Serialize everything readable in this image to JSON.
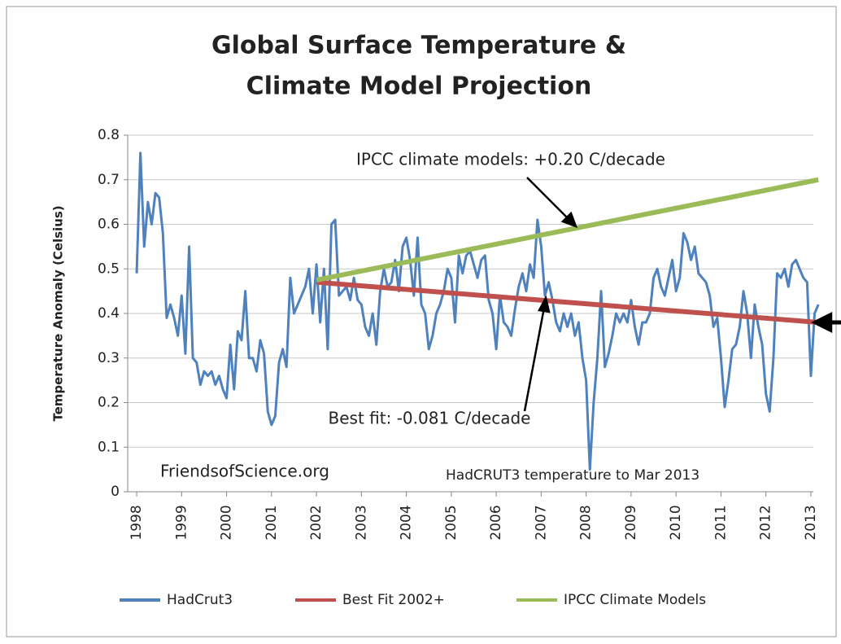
{
  "chart_data": {
    "type": "line",
    "title": [
      "Global Surface Temperature &",
      "Climate Model Projection"
    ],
    "ylabel": "Temperature Anomaly (Celsius)",
    "annotations": [
      "IPCC climate models: +0.20 C/decade",
      "Best fit: -0.081 C/decade",
      "FriendsofScience.org",
      "HadCRUT3 temperature to Mar 2013"
    ],
    "xlim": [
      1997.8,
      2013.2
    ],
    "xticks": [
      1998,
      1999,
      2000,
      2001,
      2002,
      2003,
      2004,
      2005,
      2006,
      2007,
      2008,
      2009,
      2010,
      2011,
      2012,
      2013
    ],
    "ylim": [
      0,
      0.8
    ],
    "yticks": [
      0,
      0.1,
      0.2,
      0.3,
      0.4,
      0.5,
      0.6,
      0.7,
      0.8
    ],
    "grid": true,
    "legend": "bottom",
    "series": [
      {
        "name": "HadCrut3",
        "color": "#4f81bd",
        "x": [
          1998,
          1998.083,
          1998.167,
          1998.25,
          1998.333,
          1998.417,
          1998.5,
          1998.583,
          1998.667,
          1998.75,
          1998.833,
          1998.917,
          1999,
          1999.083,
          1999.167,
          1999.25,
          1999.333,
          1999.417,
          1999.5,
          1999.583,
          1999.667,
          1999.75,
          1999.833,
          1999.917,
          2000,
          2000.083,
          2000.167,
          2000.25,
          2000.333,
          2000.417,
          2000.5,
          2000.583,
          2000.667,
          2000.75,
          2000.833,
          2000.917,
          2001,
          2001.083,
          2001.167,
          2001.25,
          2001.333,
          2001.417,
          2001.5,
          2001.583,
          2001.667,
          2001.75,
          2001.833,
          2001.917,
          2002,
          2002.083,
          2002.167,
          2002.25,
          2002.333,
          2002.417,
          2002.5,
          2002.583,
          2002.667,
          2002.75,
          2002.833,
          2002.917,
          2003,
          2003.083,
          2003.167,
          2003.25,
          2003.333,
          2003.417,
          2003.5,
          2003.583,
          2003.667,
          2003.75,
          2003.833,
          2003.917,
          2004,
          2004.083,
          2004.167,
          2004.25,
          2004.333,
          2004.417,
          2004.5,
          2004.583,
          2004.667,
          2004.75,
          2004.833,
          2004.917,
          2005,
          2005.083,
          2005.167,
          2005.25,
          2005.333,
          2005.417,
          2005.5,
          2005.583,
          2005.667,
          2005.75,
          2005.833,
          2005.917,
          2006,
          2006.083,
          2006.167,
          2006.25,
          2006.333,
          2006.417,
          2006.5,
          2006.583,
          2006.667,
          2006.75,
          2006.833,
          2006.917,
          2007,
          2007.083,
          2007.167,
          2007.25,
          2007.333,
          2007.417,
          2007.5,
          2007.583,
          2007.667,
          2007.75,
          2007.833,
          2007.917,
          2008,
          2008.083,
          2008.167,
          2008.25,
          2008.333,
          2008.417,
          2008.5,
          2008.583,
          2008.667,
          2008.75,
          2008.833,
          2008.917,
          2009,
          2009.083,
          2009.167,
          2009.25,
          2009.333,
          2009.417,
          2009.5,
          2009.583,
          2009.667,
          2009.75,
          2009.833,
          2009.917,
          2010,
          2010.083,
          2010.167,
          2010.25,
          2010.333,
          2010.417,
          2010.5,
          2010.583,
          2010.667,
          2010.75,
          2010.833,
          2010.917,
          2011,
          2011.083,
          2011.167,
          2011.25,
          2011.333,
          2011.417,
          2011.5,
          2011.583,
          2011.667,
          2011.75,
          2011.833,
          2011.917,
          2012,
          2012.083,
          2012.167,
          2012.25,
          2012.333,
          2012.417,
          2012.5,
          2012.583,
          2012.667,
          2012.75,
          2012.833,
          2012.917,
          2013,
          2013.083,
          2013.167
        ],
        "values": [
          0.49,
          0.76,
          0.55,
          0.65,
          0.6,
          0.67,
          0.66,
          0.58,
          0.39,
          0.42,
          0.39,
          0.35,
          0.44,
          0.31,
          0.55,
          0.3,
          0.29,
          0.24,
          0.27,
          0.26,
          0.27,
          0.24,
          0.26,
          0.23,
          0.21,
          0.33,
          0.23,
          0.36,
          0.34,
          0.45,
          0.3,
          0.3,
          0.27,
          0.34,
          0.31,
          0.18,
          0.15,
          0.17,
          0.29,
          0.32,
          0.28,
          0.48,
          0.4,
          0.42,
          0.44,
          0.46,
          0.5,
          0.4,
          0.51,
          0.38,
          0.5,
          0.32,
          0.6,
          0.61,
          0.44,
          0.45,
          0.46,
          0.43,
          0.48,
          0.43,
          0.42,
          0.37,
          0.35,
          0.4,
          0.33,
          0.45,
          0.5,
          0.46,
          0.47,
          0.52,
          0.45,
          0.55,
          0.57,
          0.52,
          0.44,
          0.57,
          0.42,
          0.4,
          0.32,
          0.35,
          0.4,
          0.42,
          0.45,
          0.5,
          0.48,
          0.38,
          0.53,
          0.49,
          0.53,
          0.54,
          0.51,
          0.48,
          0.52,
          0.53,
          0.43,
          0.4,
          0.32,
          0.44,
          0.38,
          0.37,
          0.35,
          0.41,
          0.46,
          0.49,
          0.45,
          0.51,
          0.48,
          0.61,
          0.55,
          0.44,
          0.47,
          0.43,
          0.38,
          0.36,
          0.4,
          0.37,
          0.4,
          0.35,
          0.38,
          0.3,
          0.25,
          0.05,
          0.2,
          0.3,
          0.45,
          0.28,
          0.31,
          0.35,
          0.4,
          0.38,
          0.4,
          0.38,
          0.43,
          0.37,
          0.33,
          0.38,
          0.38,
          0.4,
          0.48,
          0.5,
          0.46,
          0.44,
          0.48,
          0.52,
          0.45,
          0.48,
          0.58,
          0.56,
          0.52,
          0.55,
          0.49,
          0.48,
          0.47,
          0.44,
          0.37,
          0.39,
          0.3,
          0.19,
          0.25,
          0.32,
          0.33,
          0.37,
          0.45,
          0.4,
          0.3,
          0.42,
          0.37,
          0.33,
          0.22,
          0.18,
          0.3,
          0.49,
          0.48,
          0.5,
          0.46,
          0.51,
          0.52,
          0.5,
          0.48,
          0.47,
          0.26,
          0.4,
          0.42
        ]
      },
      {
        "name": "Best Fit 2002+",
        "color": "#c0504d",
        "x": [
          2002,
          2013.167
        ],
        "values": [
          0.47,
          0.38
        ]
      },
      {
        "name": "IPCC Climate Models",
        "color": "#9bbb59",
        "x": [
          2002,
          2013.167
        ],
        "values": [
          0.475,
          0.7
        ]
      }
    ]
  }
}
